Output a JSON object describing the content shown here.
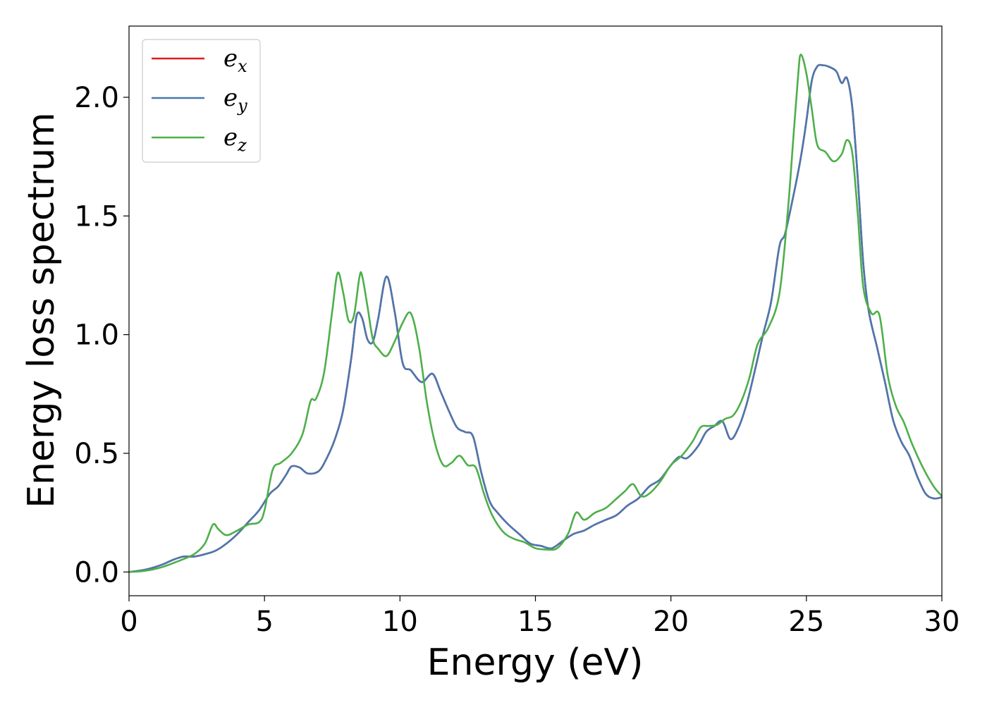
{
  "chart_data": {
    "type": "line",
    "xlabel": "Energy (eV)",
    "ylabel": "Energy loss spectrum",
    "xlim": [
      0,
      30
    ],
    "ylim": [
      -0.1,
      2.3
    ],
    "xticks": [
      0,
      5,
      10,
      15,
      20,
      25,
      30
    ],
    "xtick_labels": [
      "0",
      "5",
      "10",
      "15",
      "20",
      "25",
      "30"
    ],
    "yticks": [
      0.0,
      0.5,
      1.0,
      1.5,
      2.0
    ],
    "ytick_labels": [
      "0.0",
      "0.5",
      "1.0",
      "1.5",
      "2.0"
    ],
    "grid": false,
    "legend": {
      "placement": "top-left",
      "entries": [
        {
          "base": "e",
          "sub": "x",
          "color": "#e41a1c"
        },
        {
          "base": "e",
          "sub": "y",
          "color": "#4a78b0"
        },
        {
          "base": "e",
          "sub": "z",
          "color": "#4daf4a"
        }
      ]
    },
    "series": [
      {
        "key": "ex",
        "color": "#e41a1c",
        "x": [
          0,
          0.6,
          1.2,
          1.6,
          2.0,
          2.4,
          2.8,
          3.2,
          3.6,
          4.0,
          4.4,
          4.8,
          5.2,
          5.5,
          5.8,
          6.0,
          6.3,
          6.6,
          7.0,
          7.3,
          7.6,
          7.9,
          8.2,
          8.4,
          8.6,
          8.8,
          9.0,
          9.2,
          9.5,
          9.8,
          10.1,
          10.4,
          10.8,
          11.2,
          11.5,
          11.8,
          12.1,
          12.4,
          12.7,
          13.0,
          13.3,
          13.6,
          14.0,
          14.4,
          14.8,
          15.2,
          15.6,
          16.0,
          16.4,
          16.8,
          17.2,
          17.6,
          18.0,
          18.4,
          18.8,
          19.2,
          19.6,
          20.0,
          20.3,
          20.6,
          21.0,
          21.3,
          21.6,
          21.9,
          22.2,
          22.5,
          22.8,
          23.1,
          23.4,
          23.7,
          24.0,
          24.2,
          24.4,
          24.6,
          24.8,
          25.0,
          25.2,
          25.4,
          25.6,
          25.8,
          26.1,
          26.3,
          26.5,
          26.7,
          26.9,
          27.1,
          27.3,
          27.6,
          27.9,
          28.2,
          28.5,
          28.8,
          29.1,
          29.4,
          29.7,
          30.0
        ],
        "y": [
          0.0,
          0.01,
          0.03,
          0.05,
          0.065,
          0.065,
          0.075,
          0.09,
          0.12,
          0.16,
          0.21,
          0.26,
          0.33,
          0.36,
          0.41,
          0.445,
          0.44,
          0.415,
          0.425,
          0.48,
          0.56,
          0.68,
          0.9,
          1.08,
          1.07,
          0.98,
          0.97,
          1.07,
          1.245,
          1.1,
          0.88,
          0.85,
          0.8,
          0.835,
          0.76,
          0.68,
          0.61,
          0.59,
          0.57,
          0.42,
          0.3,
          0.25,
          0.2,
          0.16,
          0.12,
          0.11,
          0.1,
          0.13,
          0.16,
          0.175,
          0.2,
          0.22,
          0.24,
          0.28,
          0.31,
          0.36,
          0.39,
          0.45,
          0.485,
          0.48,
          0.53,
          0.59,
          0.615,
          0.635,
          0.56,
          0.61,
          0.71,
          0.85,
          1.0,
          1.14,
          1.37,
          1.42,
          1.52,
          1.63,
          1.75,
          1.9,
          2.07,
          2.13,
          2.135,
          2.13,
          2.11,
          2.06,
          2.08,
          1.95,
          1.65,
          1.3,
          1.1,
          0.95,
          0.8,
          0.64,
          0.55,
          0.49,
          0.4,
          0.33,
          0.31,
          0.315
        ]
      },
      {
        "key": "ey",
        "color": "#4a78b0",
        "x": [
          0,
          0.6,
          1.2,
          1.6,
          2.0,
          2.4,
          2.8,
          3.2,
          3.6,
          4.0,
          4.4,
          4.8,
          5.2,
          5.5,
          5.8,
          6.0,
          6.3,
          6.6,
          7.0,
          7.3,
          7.6,
          7.9,
          8.2,
          8.4,
          8.6,
          8.8,
          9.0,
          9.2,
          9.5,
          9.8,
          10.1,
          10.4,
          10.8,
          11.2,
          11.5,
          11.8,
          12.1,
          12.4,
          12.7,
          13.0,
          13.3,
          13.6,
          14.0,
          14.4,
          14.8,
          15.2,
          15.6,
          16.0,
          16.4,
          16.8,
          17.2,
          17.6,
          18.0,
          18.4,
          18.8,
          19.2,
          19.6,
          20.0,
          20.3,
          20.6,
          21.0,
          21.3,
          21.6,
          21.9,
          22.2,
          22.5,
          22.8,
          23.1,
          23.4,
          23.7,
          24.0,
          24.2,
          24.4,
          24.6,
          24.8,
          25.0,
          25.2,
          25.4,
          25.6,
          25.8,
          26.1,
          26.3,
          26.5,
          26.7,
          26.9,
          27.1,
          27.3,
          27.6,
          27.9,
          28.2,
          28.5,
          28.8,
          29.1,
          29.4,
          29.7,
          30.0
        ],
        "y": [
          0.0,
          0.01,
          0.03,
          0.05,
          0.065,
          0.065,
          0.075,
          0.09,
          0.12,
          0.16,
          0.21,
          0.26,
          0.33,
          0.36,
          0.41,
          0.445,
          0.44,
          0.415,
          0.425,
          0.48,
          0.56,
          0.68,
          0.9,
          1.08,
          1.07,
          0.98,
          0.97,
          1.07,
          1.245,
          1.1,
          0.88,
          0.85,
          0.8,
          0.835,
          0.76,
          0.68,
          0.61,
          0.59,
          0.57,
          0.42,
          0.3,
          0.25,
          0.2,
          0.16,
          0.12,
          0.11,
          0.1,
          0.13,
          0.16,
          0.175,
          0.2,
          0.22,
          0.24,
          0.28,
          0.31,
          0.36,
          0.39,
          0.45,
          0.485,
          0.48,
          0.53,
          0.59,
          0.615,
          0.635,
          0.56,
          0.61,
          0.71,
          0.85,
          1.0,
          1.14,
          1.37,
          1.42,
          1.52,
          1.63,
          1.75,
          1.9,
          2.07,
          2.13,
          2.135,
          2.13,
          2.11,
          2.06,
          2.08,
          1.95,
          1.65,
          1.3,
          1.1,
          0.95,
          0.8,
          0.64,
          0.55,
          0.49,
          0.4,
          0.33,
          0.31,
          0.315
        ]
      },
      {
        "key": "ez",
        "color": "#4daf4a",
        "x": [
          0,
          0.6,
          1.2,
          1.8,
          2.4,
          2.8,
          3.1,
          3.3,
          3.6,
          4.0,
          4.4,
          4.8,
          5.0,
          5.3,
          5.6,
          6.0,
          6.4,
          6.7,
          6.9,
          7.2,
          7.5,
          7.7,
          7.9,
          8.1,
          8.3,
          8.5,
          8.6,
          8.8,
          9.0,
          9.2,
          9.5,
          9.8,
          10.1,
          10.4,
          10.7,
          11.0,
          11.3,
          11.6,
          11.9,
          12.2,
          12.5,
          12.8,
          13.1,
          13.4,
          13.8,
          14.2,
          14.6,
          15.0,
          15.4,
          15.8,
          16.2,
          16.5,
          16.8,
          17.2,
          17.6,
          18.0,
          18.3,
          18.6,
          18.9,
          19.2,
          19.6,
          20.0,
          20.4,
          20.8,
          21.1,
          21.4,
          21.7,
          22.0,
          22.3,
          22.6,
          22.9,
          23.2,
          23.6,
          24.0,
          24.3,
          24.5,
          24.7,
          24.8,
          25.0,
          25.2,
          25.4,
          25.7,
          26.0,
          26.3,
          26.5,
          26.7,
          26.9,
          27.1,
          27.4,
          27.7,
          28.0,
          28.3,
          28.6,
          28.9,
          29.3,
          29.7,
          30.0
        ],
        "y": [
          0.0,
          0.005,
          0.02,
          0.045,
          0.075,
          0.12,
          0.2,
          0.18,
          0.155,
          0.175,
          0.2,
          0.21,
          0.26,
          0.43,
          0.46,
          0.5,
          0.58,
          0.72,
          0.73,
          0.84,
          1.1,
          1.26,
          1.18,
          1.06,
          1.08,
          1.24,
          1.25,
          1.12,
          0.98,
          0.94,
          0.91,
          0.97,
          1.05,
          1.09,
          0.95,
          0.71,
          0.54,
          0.45,
          0.46,
          0.49,
          0.45,
          0.44,
          0.33,
          0.24,
          0.17,
          0.14,
          0.125,
          0.1,
          0.095,
          0.1,
          0.16,
          0.25,
          0.22,
          0.25,
          0.27,
          0.31,
          0.34,
          0.37,
          0.32,
          0.33,
          0.38,
          0.45,
          0.49,
          0.55,
          0.61,
          0.615,
          0.62,
          0.645,
          0.66,
          0.72,
          0.82,
          0.96,
          1.03,
          1.17,
          1.5,
          1.8,
          2.1,
          2.18,
          2.1,
          1.95,
          1.8,
          1.77,
          1.73,
          1.76,
          1.82,
          1.76,
          1.5,
          1.2,
          1.09,
          1.08,
          0.83,
          0.7,
          0.63,
          0.54,
          0.44,
          0.36,
          0.32
        ]
      }
    ]
  }
}
